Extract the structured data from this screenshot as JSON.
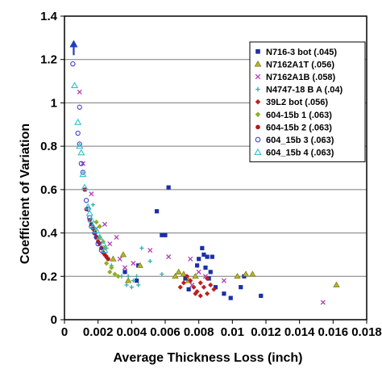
{
  "chart_data": {
    "type": "scatter",
    "xlabel": "Average Thickness Loss (inch)",
    "ylabel": "Coefficient of Variation",
    "xlim": [
      0,
      0.018
    ],
    "ylim": [
      0,
      1.4
    ],
    "x_ticks": [
      "0",
      "0.002",
      "0.004",
      "0.006",
      "0.008",
      "0.01",
      "0.012",
      "0.014",
      "0.016",
      "0.018"
    ],
    "y_ticks": [
      "0",
      "0.2",
      "0.4",
      "0.6",
      "0.8",
      "1",
      "1.2",
      "1.4"
    ],
    "grid": "horizontal",
    "legend_position": "top-right",
    "annotation": {
      "type": "arrow-up",
      "x": 0.00055,
      "y": 1.22,
      "y_end": 1.29,
      "color": "#1f3fbf"
    },
    "series": [
      {
        "name": "N716-3 bot (.045)",
        "marker": "square",
        "color": "#1c2fa8",
        "points": [
          [
            0.0062,
            0.61
          ],
          [
            0.0055,
            0.5
          ],
          [
            0.0058,
            0.39
          ],
          [
            0.006,
            0.39
          ],
          [
            0.0082,
            0.33
          ],
          [
            0.0083,
            0.3
          ],
          [
            0.008,
            0.28
          ],
          [
            0.0085,
            0.29
          ],
          [
            0.0088,
            0.29
          ],
          [
            0.0079,
            0.25
          ],
          [
            0.0084,
            0.24
          ],
          [
            0.0087,
            0.22
          ],
          [
            0.0086,
            0.19
          ],
          [
            0.009,
            0.15
          ],
          [
            0.0095,
            0.12
          ],
          [
            0.0099,
            0.1
          ],
          [
            0.0105,
            0.15
          ],
          [
            0.0117,
            0.11
          ],
          [
            0.0107,
            0.2
          ],
          [
            0.0044,
            0.25
          ],
          [
            0.0036,
            0.22
          ],
          [
            0.0043,
            0.18
          ],
          [
            0.0072,
            0.19
          ],
          [
            0.0074,
            0.14
          ]
        ]
      },
      {
        "name": "N7162A1T (.056)",
        "marker": "triangle",
        "color": "#b5b520",
        "points": [
          [
            0.0162,
            0.16
          ],
          [
            0.0112,
            0.21
          ],
          [
            0.0108,
            0.21
          ],
          [
            0.0103,
            0.2
          ],
          [
            0.0071,
            0.21
          ],
          [
            0.0078,
            0.2
          ],
          [
            0.0066,
            0.2
          ],
          [
            0.0068,
            0.22
          ],
          [
            0.0074,
            0.18
          ],
          [
            0.0045,
            0.25
          ],
          [
            0.0035,
            0.3
          ],
          [
            0.0038,
            0.18
          ],
          [
            0.0029,
            0.28
          ]
        ]
      },
      {
        "name": "N7162A1B (.058)",
        "marker": "x",
        "color": "#b03fb0",
        "points": [
          [
            0.0009,
            1.05
          ],
          [
            0.0011,
            0.72
          ],
          [
            0.0016,
            0.58
          ],
          [
            0.0019,
            0.42
          ],
          [
            0.0024,
            0.44
          ],
          [
            0.0027,
            0.35
          ],
          [
            0.0031,
            0.38
          ],
          [
            0.0033,
            0.28
          ],
          [
            0.0041,
            0.26
          ],
          [
            0.0051,
            0.32
          ],
          [
            0.0062,
            0.29
          ],
          [
            0.0075,
            0.28
          ],
          [
            0.008,
            0.22
          ],
          [
            0.0084,
            0.2
          ],
          [
            0.0076,
            0.16
          ],
          [
            0.0095,
            0.18
          ],
          [
            0.0154,
            0.08
          ],
          [
            0.0036,
            0.24
          ]
        ]
      },
      {
        "name": "N4747-18 B A (.04)",
        "marker": "plus",
        "color": "#2fb0a8",
        "points": [
          [
            0.0013,
            0.6
          ],
          [
            0.0017,
            0.53
          ],
          [
            0.0025,
            0.33
          ],
          [
            0.0038,
            0.2
          ],
          [
            0.0041,
            0.18
          ],
          [
            0.004,
            0.15
          ],
          [
            0.0037,
            0.16
          ],
          [
            0.0043,
            0.2
          ],
          [
            0.0046,
            0.33
          ],
          [
            0.0051,
            0.27
          ],
          [
            0.0058,
            0.21
          ],
          [
            0.0028,
            0.25
          ],
          [
            0.0034,
            0.2
          ],
          [
            0.0044,
            0.16
          ]
        ]
      },
      {
        "name": "39L2 bot (.056)",
        "marker": "diamond",
        "color": "#c01e1e",
        "points": [
          [
            0.0077,
            0.15
          ],
          [
            0.0079,
            0.13
          ],
          [
            0.0081,
            0.17
          ],
          [
            0.0083,
            0.15
          ],
          [
            0.0085,
            0.12
          ],
          [
            0.0087,
            0.16
          ],
          [
            0.0089,
            0.14
          ],
          [
            0.0073,
            0.2
          ],
          [
            0.0075,
            0.18
          ],
          [
            0.0071,
            0.17
          ],
          [
            0.0081,
            0.11
          ],
          [
            0.0085,
            0.19
          ],
          [
            0.0069,
            0.15
          ],
          [
            0.0078,
            0.12
          ]
        ]
      },
      {
        "name": "604-15b 1 (.063)",
        "marker": "diamond",
        "color": "#8fb020",
        "points": [
          [
            0.0019,
            0.45
          ],
          [
            0.0021,
            0.43
          ],
          [
            0.0023,
            0.36
          ],
          [
            0.0022,
            0.33
          ],
          [
            0.0024,
            0.3
          ],
          [
            0.0026,
            0.28
          ],
          [
            0.0028,
            0.24
          ],
          [
            0.0025,
            0.26
          ],
          [
            0.003,
            0.21
          ],
          [
            0.0027,
            0.22
          ],
          [
            0.0032,
            0.2
          ],
          [
            0.0018,
            0.41
          ],
          [
            0.0021,
            0.38
          ],
          [
            0.0024,
            0.33
          ]
        ]
      },
      {
        "name": "604-15b 2 (.063)",
        "marker": "circle",
        "color": "#b01818",
        "points": [
          [
            0.0012,
            0.6
          ],
          [
            0.0013,
            0.51
          ],
          [
            0.0015,
            0.46
          ],
          [
            0.0017,
            0.42
          ],
          [
            0.0019,
            0.38
          ],
          [
            0.0021,
            0.35
          ],
          [
            0.0022,
            0.33
          ],
          [
            0.0024,
            0.3
          ],
          [
            0.0026,
            0.28
          ],
          [
            0.0016,
            0.44
          ],
          [
            0.0018,
            0.4
          ],
          [
            0.002,
            0.36
          ],
          [
            0.0023,
            0.31
          ],
          [
            0.0025,
            0.29
          ]
        ]
      },
      {
        "name": "604_15b 3 (.063)",
        "marker": "circle-open",
        "color": "#3f3fd0",
        "points": [
          [
            0.0005,
            1.18
          ],
          [
            0.0009,
            0.98
          ],
          [
            0.0008,
            0.86
          ],
          [
            0.0009,
            0.81
          ],
          [
            0.001,
            0.72
          ],
          [
            0.0011,
            0.68
          ],
          [
            0.0013,
            0.55
          ],
          [
            0.0014,
            0.51
          ],
          [
            0.0015,
            0.47
          ],
          [
            0.0016,
            0.43
          ],
          [
            0.0018,
            0.4
          ],
          [
            0.0019,
            0.38
          ],
          [
            0.002,
            0.35
          ],
          [
            0.0022,
            0.32
          ]
        ]
      },
      {
        "name": "604_15b 4 (.063)",
        "marker": "triangle-open",
        "color": "#2fc0d0",
        "points": [
          [
            0.0006,
            1.08
          ],
          [
            0.0008,
            0.91
          ],
          [
            0.0009,
            0.8
          ],
          [
            0.001,
            0.77
          ],
          [
            0.0011,
            0.67
          ],
          [
            0.0012,
            0.61
          ],
          [
            0.0014,
            0.52
          ],
          [
            0.0015,
            0.49
          ],
          [
            0.0016,
            0.46
          ],
          [
            0.0017,
            0.43
          ],
          [
            0.0019,
            0.41
          ],
          [
            0.0021,
            0.38
          ],
          [
            0.0023,
            0.35
          ],
          [
            0.0024,
            0.32
          ]
        ]
      }
    ]
  }
}
